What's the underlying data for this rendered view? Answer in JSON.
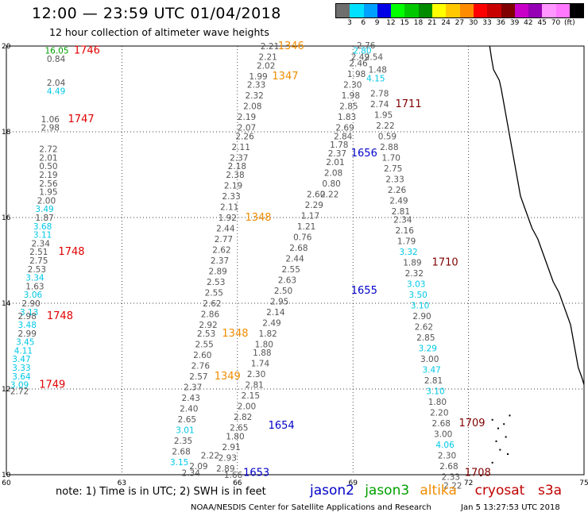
{
  "header": {
    "title": "12:00 — 23:59 UTC 01/04/2018",
    "subtitle": "12 hour collection of altimeter wave heights"
  },
  "colorbar": {
    "colors": [
      "#6e6e6e",
      "#00e1ff",
      "#00a0ff",
      "#0000e6",
      "#00ff00",
      "#00c800",
      "#008c00",
      "#ffff00",
      "#ffc800",
      "#ff8c00",
      "#ff0000",
      "#c80000",
      "#800000",
      "#c800c8",
      "#9600b4",
      "#ff96ff",
      "#ff78ff",
      "#000000"
    ],
    "ticks": [
      "3",
      "6",
      "9",
      "12",
      "15",
      "18",
      "21",
      "24",
      "27",
      "30",
      "33",
      "36",
      "39",
      "42",
      "45",
      "70"
    ],
    "unit": "(ft)"
  },
  "axes": {
    "x_ticks": [
      "60",
      "63",
      "66",
      "69",
      "72",
      "75"
    ],
    "y_ticks": [
      "20",
      "18",
      "16",
      "14",
      "12",
      "10"
    ],
    "lon_range": [
      60,
      75
    ],
    "lat_range": [
      10,
      20
    ]
  },
  "series_colors": {
    "gray": "#555555",
    "cyan": "#00c8e6",
    "green": "#00a000",
    "red": "#e00000",
    "orange": "#f08c00",
    "blue": "#0000c8",
    "maroon": "#800000"
  },
  "labels": [
    {
      "t": "16.05",
      "lon": 61.0,
      "lat": 19.9,
      "c": "green"
    },
    {
      "t": "1746",
      "lon": 61.75,
      "lat": 19.9,
      "c": "red",
      "big": 1
    },
    {
      "t": "0.84",
      "lon": 61.05,
      "lat": 19.7,
      "c": "gray"
    },
    {
      "t": "2.04",
      "lon": 61.05,
      "lat": 19.15,
      "c": "gray"
    },
    {
      "t": "4.49",
      "lon": 61.05,
      "lat": 18.95,
      "c": "cyan"
    },
    {
      "t": "1.06",
      "lon": 60.9,
      "lat": 18.3,
      "c": "gray"
    },
    {
      "t": "1747",
      "lon": 61.6,
      "lat": 18.3,
      "c": "red",
      "big": 1
    },
    {
      "t": "2.98",
      "lon": 60.9,
      "lat": 18.1,
      "c": "gray"
    },
    {
      "t": "2.72",
      "lon": 60.85,
      "lat": 17.6,
      "c": "gray"
    },
    {
      "t": "2.01",
      "lon": 60.85,
      "lat": 17.4,
      "c": "gray"
    },
    {
      "t": "0.50",
      "lon": 60.85,
      "lat": 17.2,
      "c": "gray"
    },
    {
      "t": "2.19",
      "lon": 60.85,
      "lat": 17.0,
      "c": "gray"
    },
    {
      "t": "2.56",
      "lon": 60.85,
      "lat": 16.8,
      "c": "gray"
    },
    {
      "t": "1.95",
      "lon": 60.85,
      "lat": 16.6,
      "c": "gray"
    },
    {
      "t": "2.00",
      "lon": 60.8,
      "lat": 16.4,
      "c": "gray"
    },
    {
      "t": "3.49",
      "lon": 60.75,
      "lat": 16.2,
      "c": "cyan"
    },
    {
      "t": "1.87",
      "lon": 60.75,
      "lat": 16.0,
      "c": "gray"
    },
    {
      "t": "3.68",
      "lon": 60.7,
      "lat": 15.8,
      "c": "cyan"
    },
    {
      "t": "3.11",
      "lon": 60.7,
      "lat": 15.6,
      "c": "cyan"
    },
    {
      "t": "2.34",
      "lon": 60.65,
      "lat": 15.4,
      "c": "gray"
    },
    {
      "t": "2.51",
      "lon": 60.6,
      "lat": 15.2,
      "c": "gray"
    },
    {
      "t": "1748",
      "lon": 61.35,
      "lat": 15.2,
      "c": "red",
      "big": 1
    },
    {
      "t": "2.75",
      "lon": 60.6,
      "lat": 15.0,
      "c": "gray"
    },
    {
      "t": "2.53",
      "lon": 60.55,
      "lat": 14.8,
      "c": "gray"
    },
    {
      "t": "3.34",
      "lon": 60.5,
      "lat": 14.6,
      "c": "cyan"
    },
    {
      "t": "1.63",
      "lon": 60.5,
      "lat": 14.4,
      "c": "gray"
    },
    {
      "t": "3.06",
      "lon": 60.45,
      "lat": 14.2,
      "c": "cyan"
    },
    {
      "t": "2.90",
      "lon": 60.4,
      "lat": 14.0,
      "c": "gray"
    },
    {
      "t": "3.13",
      "lon": 60.35,
      "lat": 13.8,
      "c": "cyan"
    },
    {
      "t": "2.98",
      "lon": 60.3,
      "lat": 13.7,
      "c": "gray"
    },
    {
      "t": "1748",
      "lon": 61.05,
      "lat": 13.7,
      "c": "red",
      "big": 1
    },
    {
      "t": "3.48",
      "lon": 60.3,
      "lat": 13.5,
      "c": "cyan"
    },
    {
      "t": "2.99",
      "lon": 60.3,
      "lat": 13.3,
      "c": "gray"
    },
    {
      "t": "3.45",
      "lon": 60.25,
      "lat": 13.1,
      "c": "cyan"
    },
    {
      "t": "4.11",
      "lon": 60.2,
      "lat": 12.9,
      "c": "cyan"
    },
    {
      "t": "3.47",
      "lon": 60.15,
      "lat": 12.7,
      "c": "cyan"
    },
    {
      "t": "3.33",
      "lon": 60.15,
      "lat": 12.5,
      "c": "cyan"
    },
    {
      "t": "3.64",
      "lon": 60.15,
      "lat": 12.3,
      "c": "cyan"
    },
    {
      "t": "3.09",
      "lon": 60.1,
      "lat": 12.1,
      "c": "cyan"
    },
    {
      "t": "1749",
      "lon": 60.85,
      "lat": 12.1,
      "c": "red",
      "big": 1
    },
    {
      "t": "2.72",
      "lon": 60.1,
      "lat": 11.95,
      "c": "gray"
    },
    {
      "t": "2.21",
      "lon": 66.6,
      "lat": 20.0,
      "c": "gray"
    },
    {
      "t": "1346",
      "lon": 67.05,
      "lat": 20.0,
      "c": "orange",
      "big": 1
    },
    {
      "t": "2.21",
      "lon": 66.55,
      "lat": 19.75,
      "c": "gray"
    },
    {
      "t": "2.02",
      "lon": 66.5,
      "lat": 19.55,
      "c": "gray"
    },
    {
      "t": "1.99",
      "lon": 66.3,
      "lat": 19.3,
      "c": "gray"
    },
    {
      "t": "1347",
      "lon": 66.9,
      "lat": 19.3,
      "c": "orange",
      "big": 1
    },
    {
      "t": "2.33",
      "lon": 66.25,
      "lat": 19.1,
      "c": "gray"
    },
    {
      "t": "2.32",
      "lon": 66.2,
      "lat": 18.85,
      "c": "gray"
    },
    {
      "t": "2.08",
      "lon": 66.15,
      "lat": 18.6,
      "c": "gray"
    },
    {
      "t": "2.19",
      "lon": 66.0,
      "lat": 18.35,
      "c": "gray"
    },
    {
      "t": "2.07",
      "lon": 66.0,
      "lat": 18.1,
      "c": "gray"
    },
    {
      "t": "2.26",
      "lon": 65.95,
      "lat": 17.9,
      "c": "gray"
    },
    {
      "t": "2.11",
      "lon": 65.85,
      "lat": 17.65,
      "c": "gray"
    },
    {
      "t": "2.37",
      "lon": 65.8,
      "lat": 17.4,
      "c": "gray"
    },
    {
      "t": "2.18",
      "lon": 65.75,
      "lat": 17.2,
      "c": "gray"
    },
    {
      "t": "2.38",
      "lon": 65.7,
      "lat": 17.0,
      "c": "gray"
    },
    {
      "t": "2.19",
      "lon": 65.65,
      "lat": 16.75,
      "c": "gray"
    },
    {
      "t": "2.33",
      "lon": 65.6,
      "lat": 16.5,
      "c": "gray"
    },
    {
      "t": "2.11",
      "lon": 65.55,
      "lat": 16.25,
      "c": "gray"
    },
    {
      "t": "1.92",
      "lon": 65.5,
      "lat": 16.0,
      "c": "gray"
    },
    {
      "t": "1348",
      "lon": 66.2,
      "lat": 16.0,
      "c": "orange",
      "big": 1
    },
    {
      "t": "2.44",
      "lon": 65.45,
      "lat": 15.75,
      "c": "gray"
    },
    {
      "t": "2.77",
      "lon": 65.4,
      "lat": 15.5,
      "c": "gray"
    },
    {
      "t": "2.62",
      "lon": 65.35,
      "lat": 15.25,
      "c": "gray"
    },
    {
      "t": "2.37",
      "lon": 65.3,
      "lat": 15.0,
      "c": "gray"
    },
    {
      "t": "2.89",
      "lon": 65.25,
      "lat": 14.75,
      "c": "gray"
    },
    {
      "t": "2.53",
      "lon": 65.2,
      "lat": 14.5,
      "c": "gray"
    },
    {
      "t": "2.55",
      "lon": 65.15,
      "lat": 14.25,
      "c": "gray"
    },
    {
      "t": "2.62",
      "lon": 65.1,
      "lat": 14.0,
      "c": "gray"
    },
    {
      "t": "2.86",
      "lon": 65.05,
      "lat": 13.75,
      "c": "gray"
    },
    {
      "t": "2.92",
      "lon": 65.0,
      "lat": 13.5,
      "c": "gray"
    },
    {
      "t": "2.53",
      "lon": 64.95,
      "lat": 13.3,
      "c": "gray"
    },
    {
      "t": "1348",
      "lon": 65.6,
      "lat": 13.3,
      "c": "orange",
      "big": 1
    },
    {
      "t": "2.55",
      "lon": 64.9,
      "lat": 13.05,
      "c": "gray"
    },
    {
      "t": "2.60",
      "lon": 64.85,
      "lat": 12.8,
      "c": "gray"
    },
    {
      "t": "2.76",
      "lon": 64.8,
      "lat": 12.55,
      "c": "gray"
    },
    {
      "t": "2.57",
      "lon": 64.75,
      "lat": 12.3,
      "c": "gray"
    },
    {
      "t": "1349",
      "lon": 65.4,
      "lat": 12.3,
      "c": "orange",
      "big": 1
    },
    {
      "t": "2.37",
      "lon": 64.6,
      "lat": 12.05,
      "c": "gray"
    },
    {
      "t": "2.43",
      "lon": 64.55,
      "lat": 11.8,
      "c": "gray"
    },
    {
      "t": "2.40",
      "lon": 64.5,
      "lat": 11.55,
      "c": "gray"
    },
    {
      "t": "2.65",
      "lon": 64.45,
      "lat": 11.3,
      "c": "gray"
    },
    {
      "t": "3.01",
      "lon": 64.4,
      "lat": 11.05,
      "c": "cyan"
    },
    {
      "t": "2.35",
      "lon": 64.35,
      "lat": 10.8,
      "c": "gray"
    },
    {
      "t": "2.68",
      "lon": 64.3,
      "lat": 10.55,
      "c": "gray"
    },
    {
      "t": "3.15",
      "lon": 64.25,
      "lat": 10.3,
      "c": "cyan"
    },
    {
      "t": "2.60",
      "lon": 67.8,
      "lat": 16.55,
      "c": "gray"
    },
    {
      "t": "2.29",
      "lon": 67.75,
      "lat": 16.3,
      "c": "gray"
    },
    {
      "t": "1.17",
      "lon": 67.65,
      "lat": 16.05,
      "c": "gray"
    },
    {
      "t": "1.21",
      "lon": 67.55,
      "lat": 15.8,
      "c": "gray"
    },
    {
      "t": "0.76",
      "lon": 67.45,
      "lat": 15.55,
      "c": "gray"
    },
    {
      "t": "2.68",
      "lon": 67.35,
      "lat": 15.3,
      "c": "gray"
    },
    {
      "t": "2.44",
      "lon": 67.25,
      "lat": 15.05,
      "c": "gray"
    },
    {
      "t": "2.55",
      "lon": 67.15,
      "lat": 14.8,
      "c": "gray"
    },
    {
      "t": "2.63",
      "lon": 67.05,
      "lat": 14.55,
      "c": "gray"
    },
    {
      "t": "2.50",
      "lon": 66.95,
      "lat": 14.3,
      "c": "gray"
    },
    {
      "t": "2.95",
      "lon": 66.85,
      "lat": 14.05,
      "c": "gray"
    },
    {
      "t": "2.14",
      "lon": 66.75,
      "lat": 13.8,
      "c": "gray"
    },
    {
      "t": "2.49",
      "lon": 66.65,
      "lat": 13.55,
      "c": "gray"
    },
    {
      "t": "1.82",
      "lon": 66.55,
      "lat": 13.3,
      "c": "gray"
    },
    {
      "t": "1.80",
      "lon": 66.45,
      "lat": 13.05,
      "c": "gray"
    },
    {
      "t": "1.88",
      "lon": 66.4,
      "lat": 12.85,
      "c": "gray"
    },
    {
      "t": "1.74",
      "lon": 66.35,
      "lat": 12.6,
      "c": "gray"
    },
    {
      "t": "2.30",
      "lon": 66.25,
      "lat": 12.35,
      "c": "gray"
    },
    {
      "t": "2.81",
      "lon": 66.2,
      "lat": 12.1,
      "c": "gray"
    },
    {
      "t": "2.15",
      "lon": 66.1,
      "lat": 11.85,
      "c": "gray"
    },
    {
      "t": "2.00",
      "lon": 66.0,
      "lat": 11.6,
      "c": "gray"
    },
    {
      "t": "2.82",
      "lon": 65.9,
      "lat": 11.35,
      "c": "gray"
    },
    {
      "t": "2.65",
      "lon": 65.8,
      "lat": 11.1,
      "c": "gray"
    },
    {
      "t": "1.80",
      "lon": 65.7,
      "lat": 10.9,
      "c": "gray"
    },
    {
      "t": "2.91",
      "lon": 65.6,
      "lat": 10.65,
      "c": "gray"
    },
    {
      "t": "2.93",
      "lon": 65.5,
      "lat": 10.4,
      "c": "gray"
    },
    {
      "t": "2.89",
      "lon": 65.45,
      "lat": 10.15,
      "c": "gray"
    },
    {
      "t": "2.76",
      "lon": 69.1,
      "lat": 20.02,
      "c": "gray"
    },
    {
      "t": "2.80",
      "lon": 69.0,
      "lat": 19.9,
      "c": "cyan"
    },
    {
      "t": "2.49",
      "lon": 68.95,
      "lat": 19.75,
      "c": "gray"
    },
    {
      "t": "2.46",
      "lon": 68.9,
      "lat": 19.6,
      "c": "gray"
    },
    {
      "t": "1.98",
      "lon": 68.85,
      "lat": 19.35,
      "c": "gray"
    },
    {
      "t": "2.30",
      "lon": 68.75,
      "lat": 19.1,
      "c": "gray"
    },
    {
      "t": "1.98",
      "lon": 68.7,
      "lat": 18.85,
      "c": "gray"
    },
    {
      "t": "2.85",
      "lon": 68.65,
      "lat": 18.6,
      "c": "gray"
    },
    {
      "t": "1.83",
      "lon": 68.6,
      "lat": 18.35,
      "c": "gray"
    },
    {
      "t": "2.69",
      "lon": 68.55,
      "lat": 18.1,
      "c": "gray"
    },
    {
      "t": "2.84",
      "lon": 68.5,
      "lat": 17.9,
      "c": "gray"
    },
    {
      "t": "1.78",
      "lon": 68.4,
      "lat": 17.7,
      "c": "gray"
    },
    {
      "t": "2.37",
      "lon": 68.35,
      "lat": 17.5,
      "c": "gray"
    },
    {
      "t": "1656",
      "lon": 68.95,
      "lat": 17.5,
      "c": "blue",
      "big": 1
    },
    {
      "t": "2.01",
      "lon": 68.3,
      "lat": 17.3,
      "c": "gray"
    },
    {
      "t": "2.08",
      "lon": 68.25,
      "lat": 17.05,
      "c": "gray"
    },
    {
      "t": "0.80",
      "lon": 68.2,
      "lat": 16.8,
      "c": "gray"
    },
    {
      "t": "2.22",
      "lon": 68.15,
      "lat": 16.55,
      "c": "gray"
    },
    {
      "t": "2.54",
      "lon": 69.3,
      "lat": 19.75,
      "c": "gray"
    },
    {
      "t": "1.48",
      "lon": 69.4,
      "lat": 19.45,
      "c": "gray"
    },
    {
      "t": "4.15",
      "lon": 69.35,
      "lat": 19.25,
      "c": "cyan"
    },
    {
      "t": "2.78",
      "lon": 69.45,
      "lat": 18.9,
      "c": "gray"
    },
    {
      "t": "2.74",
      "lon": 69.45,
      "lat": 18.65,
      "c": "gray"
    },
    {
      "t": "1711",
      "lon": 70.1,
      "lat": 18.65,
      "c": "maroon",
      "big": 1
    },
    {
      "t": "1.95",
      "lon": 69.55,
      "lat": 18.4,
      "c": "gray"
    },
    {
      "t": "2.22",
      "lon": 69.6,
      "lat": 18.15,
      "c": "gray"
    },
    {
      "t": "0.59",
      "lon": 69.65,
      "lat": 17.9,
      "c": "gray"
    },
    {
      "t": "2.88",
      "lon": 69.7,
      "lat": 17.65,
      "c": "gray"
    },
    {
      "t": "1.70",
      "lon": 69.75,
      "lat": 17.4,
      "c": "gray"
    },
    {
      "t": "2.75",
      "lon": 69.8,
      "lat": 17.15,
      "c": "gray"
    },
    {
      "t": "2.33",
      "lon": 69.85,
      "lat": 16.9,
      "c": "gray"
    },
    {
      "t": "2.26",
      "lon": 69.9,
      "lat": 16.65,
      "c": "gray"
    },
    {
      "t": "2.49",
      "lon": 69.95,
      "lat": 16.4,
      "c": "gray"
    },
    {
      "t": "2.81",
      "lon": 70.0,
      "lat": 16.15,
      "c": "gray"
    },
    {
      "t": "2.34",
      "lon": 70.05,
      "lat": 15.95,
      "c": "gray"
    },
    {
      "t": "2.16",
      "lon": 70.1,
      "lat": 15.7,
      "c": "gray"
    },
    {
      "t": "1.79",
      "lon": 70.15,
      "lat": 15.45,
      "c": "gray"
    },
    {
      "t": "3.32",
      "lon": 70.2,
      "lat": 15.2,
      "c": "cyan"
    },
    {
      "t": "1.89",
      "lon": 70.3,
      "lat": 14.95,
      "c": "gray"
    },
    {
      "t": "1710",
      "lon": 71.05,
      "lat": 14.95,
      "c": "maroon",
      "big": 1
    },
    {
      "t": "2.32",
      "lon": 70.35,
      "lat": 14.7,
      "c": "gray"
    },
    {
      "t": "3.03",
      "lon": 70.4,
      "lat": 14.45,
      "c": "cyan"
    },
    {
      "t": "3.50",
      "lon": 70.45,
      "lat": 14.2,
      "c": "cyan"
    },
    {
      "t": "3.10",
      "lon": 70.5,
      "lat": 13.95,
      "c": "cyan"
    },
    {
      "t": "2.90",
      "lon": 70.55,
      "lat": 13.7,
      "c": "gray"
    },
    {
      "t": "2.62",
      "lon": 70.6,
      "lat": 13.45,
      "c": "gray"
    },
    {
      "t": "2.85",
      "lon": 70.65,
      "lat": 13.2,
      "c": "gray"
    },
    {
      "t": "3.29",
      "lon": 70.7,
      "lat": 12.95,
      "c": "cyan"
    },
    {
      "t": "3.00",
      "lon": 70.75,
      "lat": 12.7,
      "c": "gray"
    },
    {
      "t": "3.47",
      "lon": 70.8,
      "lat": 12.45,
      "c": "cyan"
    },
    {
      "t": "2.81",
      "lon": 70.85,
      "lat": 12.2,
      "c": "gray"
    },
    {
      "t": "3.10",
      "lon": 70.9,
      "lat": 11.95,
      "c": "cyan"
    },
    {
      "t": "1.80",
      "lon": 70.95,
      "lat": 11.7,
      "c": "gray"
    },
    {
      "t": "2.20",
      "lon": 71.0,
      "lat": 11.45,
      "c": "gray"
    },
    {
      "t": "2.68",
      "lon": 71.05,
      "lat": 11.2,
      "c": "gray"
    },
    {
      "t": "1709",
      "lon": 71.75,
      "lat": 11.2,
      "c": "maroon",
      "big": 1
    },
    {
      "t": "3.00",
      "lon": 71.1,
      "lat": 10.95,
      "c": "gray"
    },
    {
      "t": "4.06",
      "lon": 71.15,
      "lat": 10.7,
      "c": "cyan"
    },
    {
      "t": "2.30",
      "lon": 71.2,
      "lat": 10.45,
      "c": "gray"
    },
    {
      "t": "2.68",
      "lon": 71.25,
      "lat": 10.2,
      "c": "gray"
    },
    {
      "t": "2.33",
      "lon": 71.3,
      "lat": 9.95,
      "c": "gray"
    },
    {
      "t": "2.22",
      "lon": 71.35,
      "lat": 9.75,
      "c": "gray"
    },
    {
      "t": "1654",
      "lon": 66.8,
      "lat": 11.15,
      "c": "blue",
      "big": 1
    },
    {
      "t": "1655",
      "lon": 68.95,
      "lat": 14.3,
      "c": "blue",
      "big": 1
    },
    {
      "t": "1.66",
      "lon": 65.65,
      "lat": 10.0,
      "c": "gray"
    }
  ],
  "corner_labels": {
    "p1653": "1653",
    "p1708": "1708",
    "a1": "2.34",
    "a2": "2.09",
    "a3": "2.22"
  },
  "footer": {
    "note": "note: 1) Time is in UTC; 2) SWH is in feet",
    "legend": [
      {
        "name": "jason2",
        "color": "#0000c8"
      },
      {
        "name": "jason3",
        "color": "#00a000"
      },
      {
        "name": "altika",
        "color": "#f08c00"
      },
      {
        "name": "cryosat",
        "color": "#c00000"
      },
      {
        "name": "s3a",
        "color": "#c00000"
      }
    ],
    "credit": "NOAA/NESDIS Center for Satellite Applications and Research",
    "timestamp": "Jan  5 13:27:53 UTC 2018"
  }
}
